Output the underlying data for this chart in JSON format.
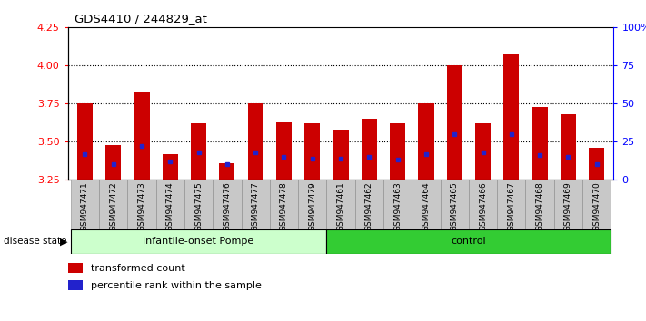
{
  "title": "GDS4410 / 244829_at",
  "samples": [
    "GSM947471",
    "GSM947472",
    "GSM947473",
    "GSM947474",
    "GSM947475",
    "GSM947476",
    "GSM947477",
    "GSM947478",
    "GSM947479",
    "GSM947461",
    "GSM947462",
    "GSM947463",
    "GSM947464",
    "GSM947465",
    "GSM947466",
    "GSM947467",
    "GSM947468",
    "GSM947469",
    "GSM947470"
  ],
  "red_values": [
    3.75,
    3.48,
    3.83,
    3.42,
    3.62,
    3.36,
    3.75,
    3.63,
    3.62,
    3.58,
    3.65,
    3.62,
    3.75,
    4.0,
    3.62,
    4.07,
    3.73,
    3.68,
    3.46
  ],
  "blue_pct": [
    17,
    10,
    22,
    12,
    18,
    10,
    18,
    15,
    14,
    14,
    15,
    13,
    17,
    30,
    18,
    30,
    16,
    15,
    10
  ],
  "group1_label": "infantile-onset Pompe",
  "group2_label": "control",
  "group1_count": 9,
  "group2_count": 10,
  "ylim_left": [
    3.25,
    4.25
  ],
  "ylim_right": [
    0,
    100
  ],
  "yticks_left": [
    3.25,
    3.5,
    3.75,
    4.0,
    4.25
  ],
  "yticks_right": [
    0,
    25,
    50,
    75,
    100
  ],
  "dotted_lines": [
    3.5,
    3.75,
    4.0
  ],
  "bar_color": "#cc0000",
  "dot_color": "#2222cc",
  "group1_bg": "#ccffcc",
  "group2_bg": "#33cc33",
  "tick_bg": "#c8c8c8",
  "bar_width": 0.55,
  "fig_width": 7.11,
  "fig_height": 3.54
}
